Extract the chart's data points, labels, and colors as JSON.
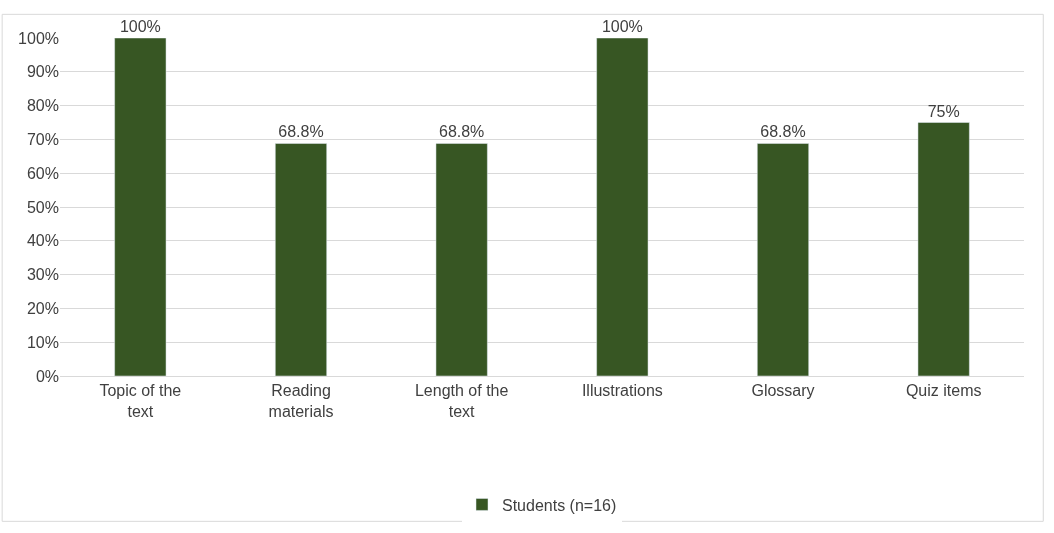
{
  "chart_data": {
    "type": "bar",
    "categories": [
      "Topic of the text",
      "Reading materials",
      "Length of the text",
      "Illustrations",
      "Glossary",
      "Quiz items"
    ],
    "series": [
      {
        "name": "Students (n=16)",
        "color": "#375623",
        "values": [
          100,
          68.8,
          68.8,
          100,
          68.8,
          75
        ],
        "value_labels": [
          "100%",
          "68.8%",
          "68.8%",
          "100%",
          "68.8%",
          "75%"
        ]
      }
    ],
    "ylim": [
      0,
      100
    ],
    "yticks": [
      {
        "value": 0,
        "label": "0%"
      },
      {
        "value": 10,
        "label": "10%"
      },
      {
        "value": 20,
        "label": "20%"
      },
      {
        "value": 30,
        "label": "30%"
      },
      {
        "value": 40,
        "label": "40%"
      },
      {
        "value": 50,
        "label": "50%"
      },
      {
        "value": 60,
        "label": "60%"
      },
      {
        "value": 70,
        "label": "70%"
      },
      {
        "value": 80,
        "label": "80%"
      },
      {
        "value": 90,
        "label": "90%"
      },
      {
        "value": 100,
        "label": "100%"
      }
    ],
    "grid": "y",
    "legend": "bottom"
  }
}
